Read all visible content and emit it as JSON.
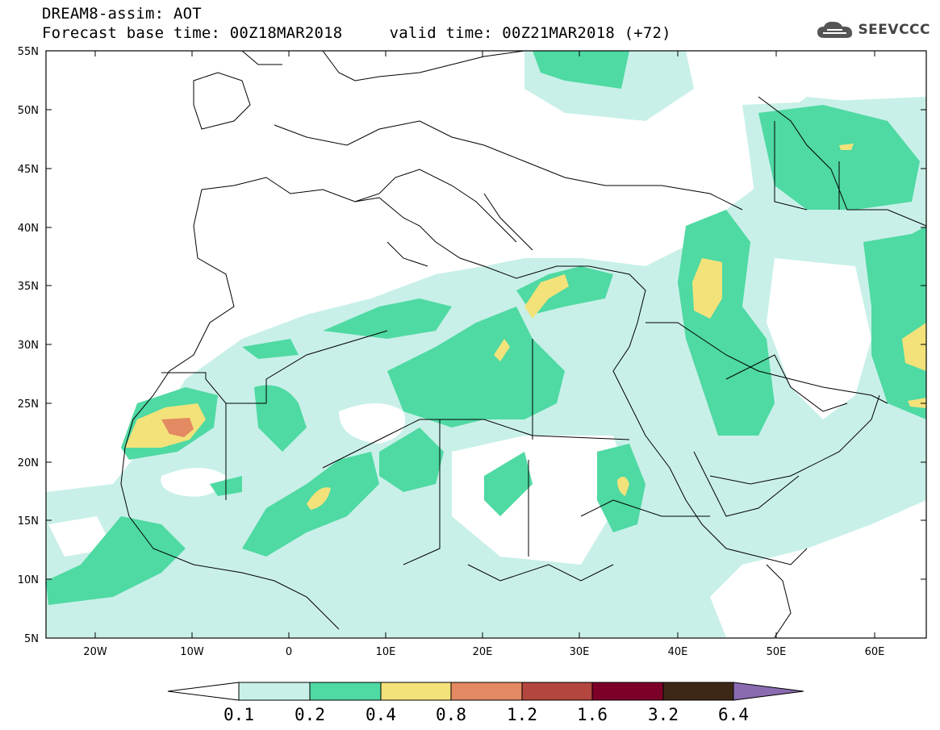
{
  "header": {
    "title_line1": "DREAM8-assim: AOT",
    "title_line2": "Forecast base time: 00Z18MAR2018     valid time: 00Z21MAR2018 (+72)",
    "logo_text": "SEEVCCC"
  },
  "map": {
    "projection": "lat-lon",
    "lon_range": [
      -25,
      65
    ],
    "lat_range": [
      5,
      55
    ],
    "lat_tick_labels": [
      "55N",
      "50N",
      "45N",
      "40N",
      "35N",
      "30N",
      "25N",
      "20N",
      "15N",
      "10N",
      "5N"
    ],
    "lon_tick_labels": [
      "20W",
      "10W",
      "0",
      "10E",
      "20E",
      "30E",
      "40E",
      "50E",
      "60E"
    ],
    "variable": "AOT"
  },
  "legend": {
    "levels": [
      "0.1",
      "0.2",
      "0.4",
      "0.8",
      "1.2",
      "1.6",
      "3.2",
      "6.4"
    ],
    "colors": [
      "#ffffff",
      "#c8f0e8",
      "#4fd9a3",
      "#f3e27a",
      "#e38a62",
      "#b3463e",
      "#7d0028",
      "#3d2815",
      "#8a6bb0"
    ]
  }
}
